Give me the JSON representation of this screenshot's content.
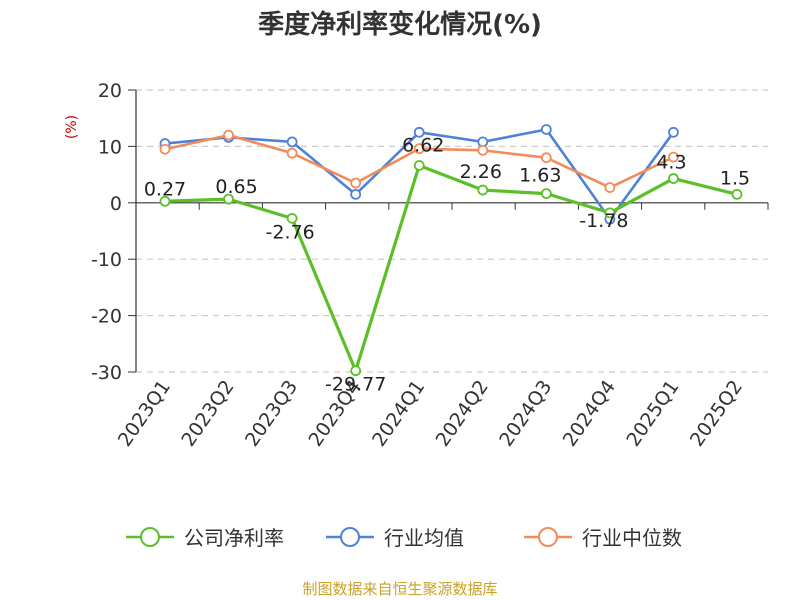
{
  "chart_data": {
    "type": "line",
    "title": "季度净利率变化情况(%)",
    "ylabel": "(%)",
    "ylim": [
      -30,
      20
    ],
    "yticks": [
      20,
      10,
      0,
      -10,
      -20,
      -30
    ],
    "grid": true,
    "legend_position": "bottom",
    "categories": [
      "2023Q1",
      "2023Q2",
      "2023Q3",
      "2023Q4",
      "2024Q1",
      "2024Q2",
      "2024Q3",
      "2024Q4",
      "2025Q1",
      "2025Q2"
    ],
    "series": [
      {
        "name": "公司净利率",
        "color": "#5cbf2a",
        "values": [
          0.27,
          0.65,
          -2.76,
          -29.77,
          6.62,
          2.26,
          1.63,
          -1.78,
          4.3,
          1.5
        ],
        "labels": [
          "0.27",
          "0.65",
          "-2.76",
          "-29.77",
          "6.62",
          "2.26",
          "1.63",
          "-1.78",
          "4.3",
          "1.5"
        ]
      },
      {
        "name": "行业均值",
        "color": "#4f81d9",
        "values": [
          10.5,
          11.6,
          10.8,
          1.5,
          12.5,
          10.8,
          13.0,
          -2.9,
          12.5,
          null
        ]
      },
      {
        "name": "行业中位数",
        "color": "#f28c5c",
        "values": [
          9.5,
          12.0,
          8.8,
          3.5,
          9.6,
          9.3,
          8.0,
          2.7,
          8.1,
          null
        ]
      }
    ],
    "source": "制图数据来自恒生聚源数据库",
    "colors": {
      "ylabel": "#cc0000",
      "source": "#c9a227",
      "grid": "#cccccc",
      "axis": "#333333"
    }
  }
}
